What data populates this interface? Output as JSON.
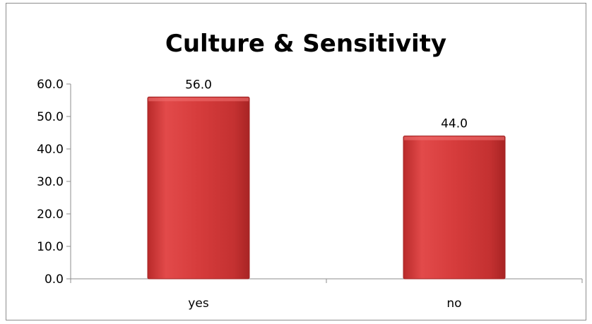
{
  "chart_data": {
    "type": "bar",
    "title": "Culture & Sensitivity",
    "categories": [
      "yes",
      "no"
    ],
    "values": [
      56.0,
      44.0
    ],
    "data_labels": [
      "56.0",
      "44.0"
    ],
    "xlabel": "",
    "ylabel": "",
    "ylim": [
      0,
      60
    ],
    "yticks": [
      "0.0",
      "10.0",
      "20.0",
      "30.0",
      "40.0",
      "50.0",
      "60.0"
    ],
    "grid": false,
    "legend": "none",
    "bar_color": "#d93f3f",
    "bar_edge_color": "#a32626"
  }
}
